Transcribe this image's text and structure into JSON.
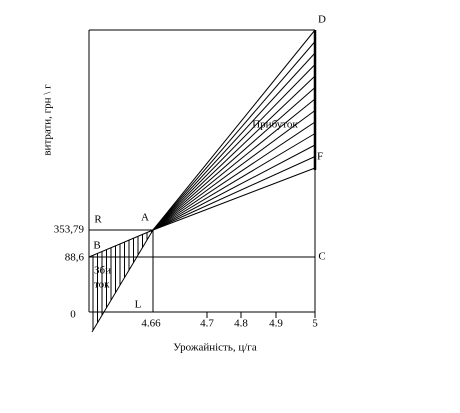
{
  "y_axis": {
    "label": "витрати, грн \\ г",
    "tick_labels": [
      "0",
      "88,6",
      "353,79"
    ]
  },
  "x_axis": {
    "label": "Урожайність, ц/га",
    "tick_labels": [
      "4.66",
      "4.7",
      "4.8",
      "4.9",
      "5"
    ]
  },
  "points": {
    "R": "R",
    "A": "A",
    "B": "B",
    "C": "C",
    "D": "D",
    "F": "F",
    "L": "L"
  },
  "annotations": {
    "profit": "Прибуток",
    "loss": [
      "Зби",
      "ток"
    ]
  }
}
